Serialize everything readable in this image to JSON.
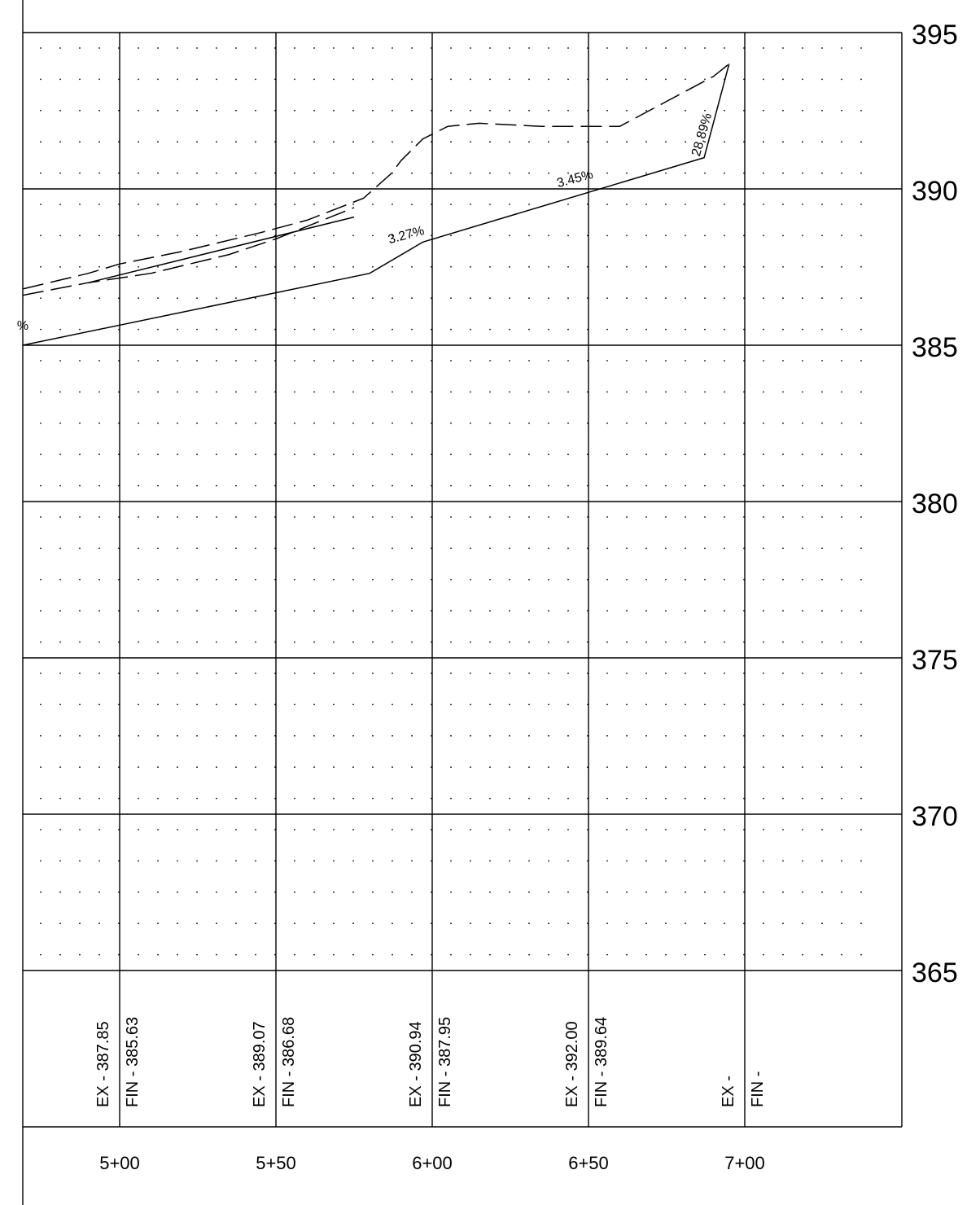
{
  "chart_data": {
    "type": "line",
    "title": "",
    "xlabel": "",
    "ylabel": "",
    "x_min": 469,
    "x_max": 750,
    "ylim": [
      365,
      395
    ],
    "y_ticks": [
      {
        "value": 395,
        "label": "395"
      },
      {
        "value": 390,
        "label": "390"
      },
      {
        "value": 385,
        "label": "385"
      },
      {
        "value": 380,
        "label": "380"
      },
      {
        "value": 375,
        "label": "375"
      },
      {
        "value": 370,
        "label": "370"
      },
      {
        "value": 365,
        "label": "365"
      }
    ],
    "x_ticks": [
      {
        "value": 500,
        "label": "5+00"
      },
      {
        "value": 550,
        "label": "5+50"
      },
      {
        "value": 600,
        "label": "6+00"
      },
      {
        "value": 650,
        "label": "6+50"
      },
      {
        "value": 700,
        "label": "7+00"
      }
    ],
    "series": [
      {
        "style": "solid",
        "x": [
          469,
          580,
          597,
          687,
          695
        ],
        "y": [
          385.0,
          387.3,
          388.3,
          391.0,
          394.0
        ]
      },
      {
        "style": "dashed",
        "x": [
          469,
          490,
          500,
          520,
          545,
          560,
          578,
          587,
          590,
          597,
          605,
          615,
          635,
          650,
          660,
          675,
          690,
          695
        ],
        "y": [
          386.8,
          387.3,
          387.6,
          388.0,
          388.6,
          389.0,
          389.7,
          390.5,
          390.9,
          391.6,
          392.0,
          392.1,
          392.0,
          392.0,
          392.0,
          392.8,
          393.6,
          394.0
        ]
      },
      {
        "style": "dashed",
        "x": [
          469,
          490,
          510,
          535,
          550,
          575
        ],
        "y": [
          386.6,
          387.0,
          387.3,
          387.9,
          388.4,
          389.4
        ]
      },
      {
        "style": "solid",
        "x": [
          490,
          575
        ],
        "y": [
          387.0,
          389.1
        ]
      }
    ],
    "slope_labels": [
      {
        "text": "%",
        "x": 469,
        "y": 385.5
      },
      {
        "text": "3.27%",
        "x": 592,
        "y": 388.4
      },
      {
        "text": "3.45%",
        "x": 646,
        "y": 390.2
      },
      {
        "text": "28.89%",
        "x": 687.5,
        "y": 391.7
      }
    ],
    "stations": [
      {
        "ex": "EX - 387.85",
        "fin": "FIN - 385.63"
      },
      {
        "ex": "EX - 389.07",
        "fin": "FIN - 386.68"
      },
      {
        "ex": "EX - 390.94",
        "fin": "FIN - 387.95"
      },
      {
        "ex": "EX - 392.00",
        "fin": "FIN - 389.64"
      },
      {
        "ex": "EX -",
        "fin": "FIN -"
      }
    ]
  }
}
